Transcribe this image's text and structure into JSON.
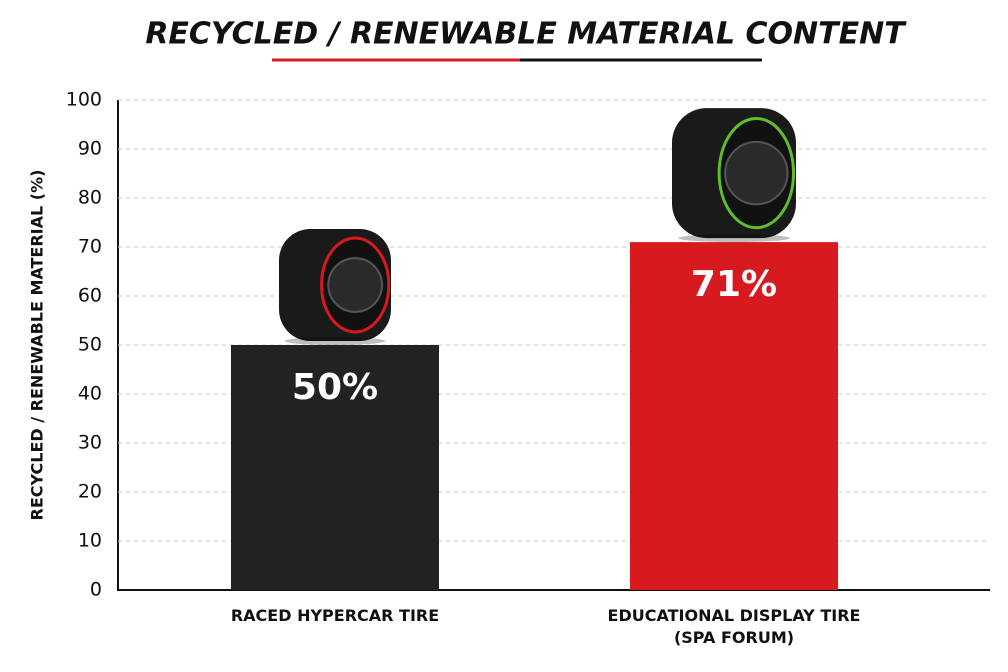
{
  "chart_data": {
    "type": "bar",
    "title": "RECYCLED / RENEWABLE MATERIAL CONTENT",
    "y_label": "RECYCLED / RENEWABLE MATERIAL (%)",
    "categories": [
      "RACED HYPERCAR TIRE",
      "EDUCATIONAL DISPLAY TIRE\n(SPA FORUM)"
    ],
    "values": [
      50,
      71
    ],
    "value_labels": [
      "50%",
      "71%"
    ],
    "colors": [
      "#222222",
      "#d71920"
    ],
    "ylim": [
      0,
      100
    ],
    "yticks": [
      0,
      10,
      20,
      30,
      40,
      50,
      60,
      70,
      80,
      90,
      100
    ],
    "grid": true
  }
}
